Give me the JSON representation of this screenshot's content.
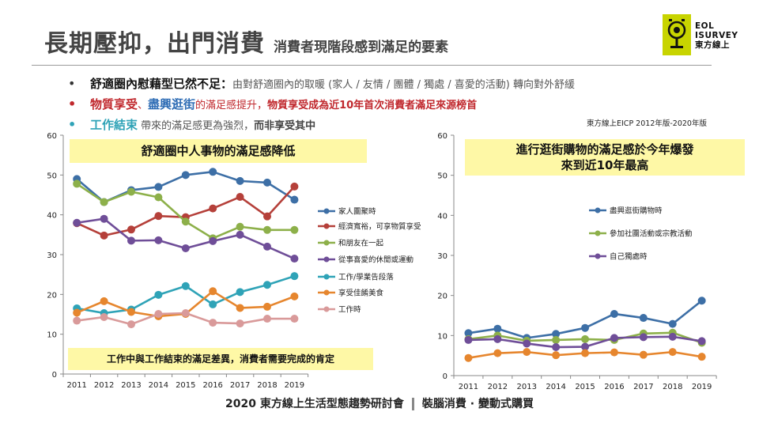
{
  "title": {
    "main": "長期壓抑，出門消費",
    "sub": "消費者現階段感到滿足的要素"
  },
  "logo": {
    "line1": "EOL",
    "line2": "ISURVEY",
    "line3": "東方線上",
    "color": "#c8d400"
  },
  "bullets": {
    "b1": {
      "key": "舒適圈內慰藉型已然不足：",
      "rest": "由對舒適圈內的取暖 (家人 / 友情 / 團體 / 獨處 / 喜愛的活動) 轉向對外舒緩"
    },
    "b2": {
      "k1": "物質享受",
      "sep": "、",
      "k2": "盡興逛街",
      "mid": "的滿足感提升，",
      "k3": "物質享受成為近10年首次消費者滿足來源榜首"
    },
    "b3": {
      "k1": "工作結束",
      "mid": " 帶來的滿足感更為強烈，",
      "end": "而非享受其中"
    }
  },
  "source": "東方線上EICP 2012年版-2020年版",
  "callouts": {
    "left_top": "舒適圈中人事物的滿足感降低",
    "right_top_line1": "進行逛街購物的滿足感於今年爆發",
    "right_top_line2": "來到近10年最高",
    "left_bottom": "工作中與工作結束的滿足差異，消費者需要完成的肯定"
  },
  "footer": {
    "left": "2020 東方線上生活型態趨勢研討會",
    "right": "裝腦消費 · 變動式購買"
  },
  "chart_data": [
    {
      "type": "line",
      "x": [
        "2011",
        "2012",
        "2013",
        "2014",
        "2015",
        "2016",
        "2017",
        "2018",
        "2019"
      ],
      "ylim": [
        0,
        60
      ],
      "yticks": [
        0,
        10,
        20,
        30,
        40,
        50,
        60
      ],
      "grid": false,
      "legend": "right",
      "series": [
        {
          "name": "家人團聚時",
          "color": "#3d6fa6",
          "values": [
            49.0,
            43.2,
            46.2,
            47.0,
            50.0,
            50.8,
            48.5,
            48.1,
            43.8
          ]
        },
        {
          "name": "經濟寬裕，可享物質享受",
          "color": "#b5403a",
          "values": [
            37.9,
            34.8,
            36.3,
            39.7,
            39.4,
            41.6,
            44.5,
            39.6,
            47.1
          ]
        },
        {
          "name": "和朋友在一起",
          "color": "#8db04a",
          "values": [
            47.8,
            43.2,
            45.8,
            44.4,
            38.3,
            34.1,
            37.0,
            36.2,
            36.2
          ]
        },
        {
          "name": "從事喜愛的休閒或運動",
          "color": "#6f4e98",
          "values": [
            38.0,
            39.0,
            33.5,
            33.6,
            31.6,
            33.4,
            35.0,
            32.0,
            29.0
          ]
        },
        {
          "name": "工作/學業告段落",
          "color": "#2fa3b7",
          "values": [
            16.5,
            15.3,
            16.2,
            19.9,
            22.1,
            17.5,
            20.6,
            22.4,
            24.6
          ]
        },
        {
          "name": "享受佳餚美食",
          "color": "#e6862e",
          "values": [
            15.4,
            18.3,
            15.6,
            14.5,
            15.1,
            20.8,
            16.6,
            16.9,
            19.5
          ]
        },
        {
          "name": "工作時",
          "color": "#d99a9a",
          "values": [
            13.4,
            14.3,
            12.5,
            15.1,
            15.3,
            12.9,
            12.7,
            13.9,
            13.9
          ]
        }
      ]
    },
    {
      "type": "line",
      "x": [
        "2011",
        "2012",
        "2013",
        "2014",
        "2015",
        "2016",
        "2017",
        "2018",
        "2019"
      ],
      "ylim": [
        0,
        60
      ],
      "yticks": [
        0,
        10,
        20,
        30,
        40,
        50,
        60
      ],
      "grid": false,
      "legend": "inside-left",
      "series": [
        {
          "name": "盡興逛街購物時",
          "color": "#3d6fa6",
          "values": [
            10.6,
            11.7,
            9.4,
            10.4,
            11.9,
            15.4,
            14.4,
            12.9,
            18.7
          ]
        },
        {
          "name": "參加社團活動或宗教活動",
          "color": "#8db04a",
          "values": [
            9.1,
            10.0,
            8.7,
            8.9,
            9.1,
            8.9,
            10.5,
            10.7,
            8.2
          ]
        },
        {
          "name": "自己獨處時",
          "color": "#6f4e98",
          "values": [
            8.9,
            9.1,
            8.0,
            7.1,
            7.2,
            9.4,
            9.6,
            9.7,
            8.6
          ]
        },
        {
          "name": "",
          "color": "#e6862e",
          "values": [
            4.4,
            5.6,
            5.9,
            5.1,
            5.6,
            5.8,
            5.2,
            5.9,
            4.7
          ]
        }
      ]
    }
  ]
}
